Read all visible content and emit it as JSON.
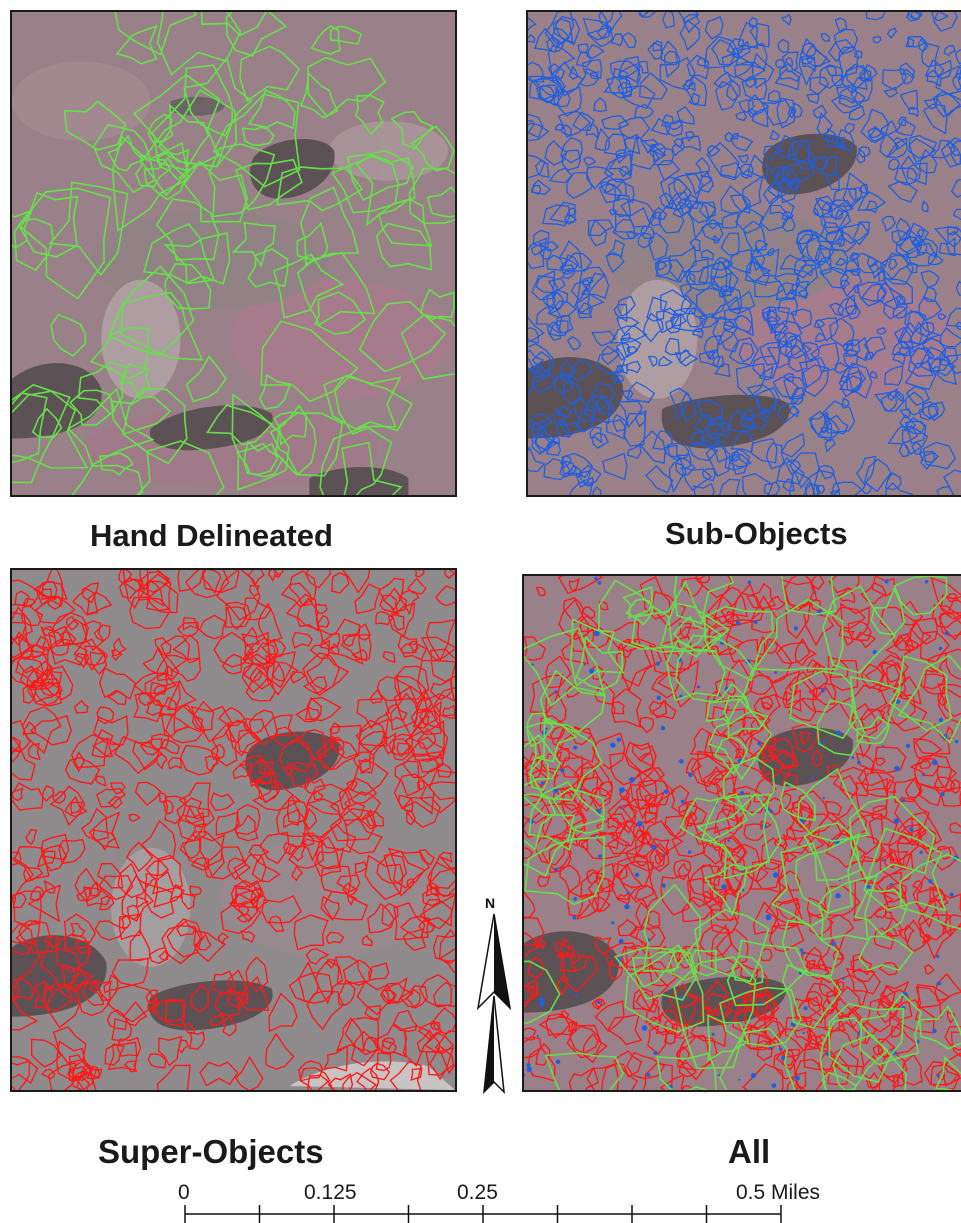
{
  "panels": {
    "hand": {
      "caption": "Hand Delineated",
      "outline_color": "#66e04a"
    },
    "sub": {
      "caption": "Sub-Objects",
      "outline_color": "#1f5fe0"
    },
    "super": {
      "caption": "Super-Objects",
      "outline_color": "#ff1a1a"
    },
    "all": {
      "caption": "All",
      "outline_colors": [
        "#ff1a1a",
        "#66e04a",
        "#1f5fe0"
      ]
    }
  },
  "north_arrow": {
    "label": "N"
  },
  "scale_bar": {
    "tick_labels": [
      "0",
      "0.125",
      "0.25",
      "0.5 Miles"
    ],
    "divisions": 8
  },
  "colors": {
    "ground_pink": "#9a8088",
    "ground_gray": "#8f8a8c",
    "water": "#5c5256"
  }
}
